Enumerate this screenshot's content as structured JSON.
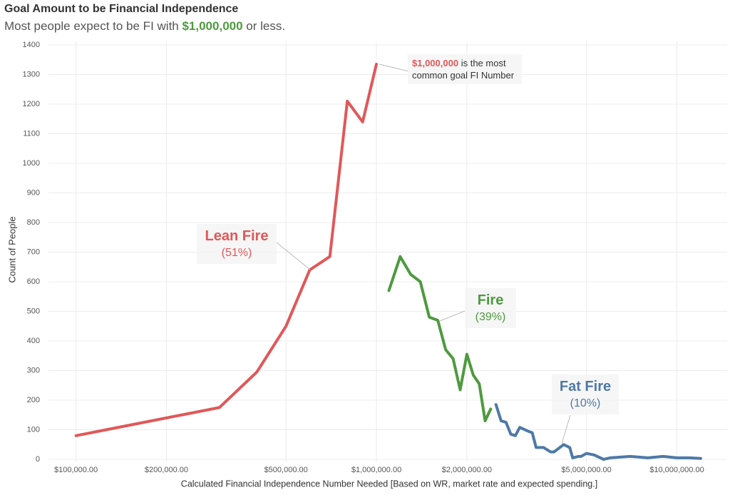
{
  "chart_data": {
    "type": "line",
    "title": "Goal Amount to be Financial Independence",
    "subtitle": [
      "Most people expect to be FI with ",
      "$1,000,000",
      " or less."
    ],
    "x_label": "Calculated Financial Independence Number Needed [Based on WR, market rate and expected spending.]",
    "y_label": "Count of People",
    "xlog": true,
    "grid": true,
    "xlim": [
      81000,
      14700000
    ],
    "ylim": [
      0,
      1400
    ],
    "xticks": [
      {
        "value": 100000,
        "label": "$100,000.00"
      },
      {
        "value": 200000,
        "label": "$200,000.00"
      },
      {
        "value": 500000,
        "label": "$500,000.00"
      },
      {
        "value": 1000000,
        "label": "$1,000,000.00"
      },
      {
        "value": 2000000,
        "label": "$2,000,000.00"
      },
      {
        "value": 5000000,
        "label": "$5,000,000.00"
      },
      {
        "value": 10000000,
        "label": "$10,000,000.00"
      }
    ],
    "yticks": [
      0,
      100,
      200,
      300,
      400,
      500,
      600,
      700,
      800,
      900,
      1000,
      1100,
      1200,
      1300,
      1400
    ],
    "annotation": {
      "highlight": "$1,000,000",
      "text": "is the most common goal FI Number"
    },
    "series": [
      {
        "name": "Lean Fire",
        "share_label": "(51%)",
        "color": "#e15759",
        "x": [
          100000,
          300000,
          400000,
          500000,
          600000,
          700000,
          800000,
          900000,
          1000000
        ],
        "values": [
          80,
          175,
          295,
          450,
          640,
          685,
          1210,
          1140,
          1335
        ]
      },
      {
        "name": "Fire",
        "share_label": "(39%)",
        "color": "#4e9a3f",
        "x": [
          1100000,
          1200000,
          1300000,
          1400000,
          1500000,
          1600000,
          1700000,
          1800000,
          1900000,
          2000000,
          2100000,
          2200000,
          2300000,
          2400000
        ],
        "values": [
          570,
          685,
          625,
          600,
          480,
          470,
          370,
          340,
          235,
          355,
          285,
          255,
          130,
          170
        ]
      },
      {
        "name": "Fat Fire",
        "share_label": "(10%)",
        "color": "#4e79a7",
        "x": [
          2500000,
          2600000,
          2700000,
          2800000,
          2900000,
          3000000,
          3200000,
          3300000,
          3400000,
          3600000,
          3800000,
          3900000,
          4200000,
          4400000,
          4500000,
          4700000,
          4800000,
          5000000,
          5300000,
          5700000,
          6000000,
          7000000,
          8000000,
          9000000,
          10000000,
          11000000,
          12000000
        ],
        "values": [
          185,
          130,
          125,
          85,
          80,
          108,
          95,
          90,
          40,
          40,
          25,
          25,
          50,
          40,
          5,
          10,
          10,
          20,
          15,
          0,
          5,
          10,
          5,
          10,
          5,
          5,
          3
        ]
      }
    ]
  }
}
